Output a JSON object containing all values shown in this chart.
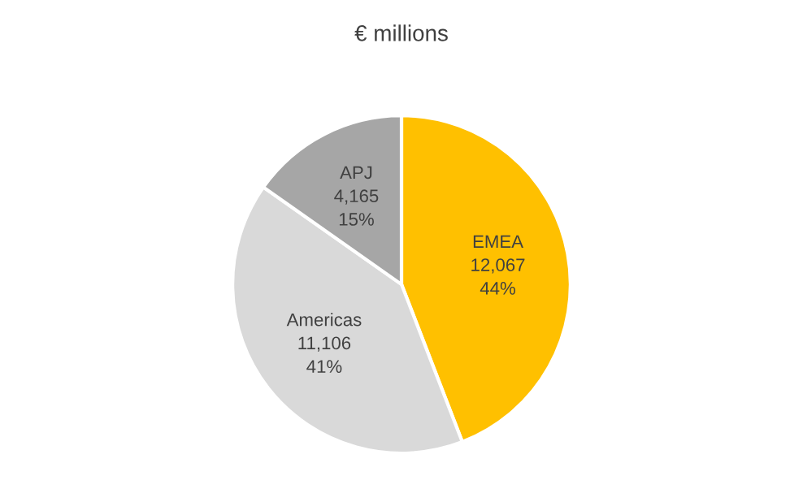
{
  "chart_data": {
    "type": "pie",
    "title": "€ millions",
    "categories": [
      "EMEA",
      "Americas",
      "APJ"
    ],
    "values": [
      12067,
      11106,
      4165
    ],
    "colors": [
      "#ffc000",
      "#d9d9d9",
      "#a6a6a6"
    ],
    "value_labels": [
      "12,067\n44%",
      "11,106\n41%",
      "4,165\n15%"
    ],
    "legend": false
  }
}
